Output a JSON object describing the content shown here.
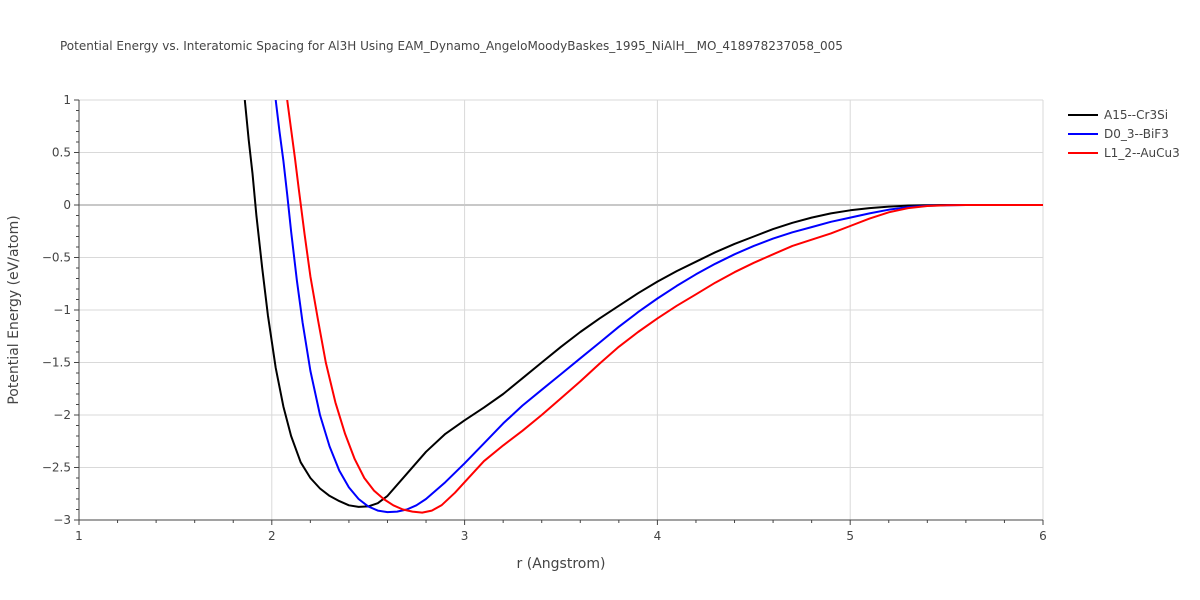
{
  "chart_data": {
    "type": "line",
    "title": "Potential Energy vs. Interatomic Spacing for Al3H Using EAM_Dynamo_AngeloMoodyBaskes_1995_NiAlH__MO_418978237058_005",
    "xlabel": "r (Angstrom)",
    "ylabel": "Potential Energy (eV/atom)",
    "xlim": [
      1,
      6
    ],
    "ylim": [
      -3,
      1
    ],
    "xticks": [
      1,
      2,
      3,
      4,
      5,
      6
    ],
    "xtick_labels": [
      "1",
      "2",
      "3",
      "4",
      "5",
      "6"
    ],
    "yticks": [
      1,
      0.5,
      0,
      -0.5,
      -1,
      -1.5,
      -2,
      -2.5,
      -3
    ],
    "ytick_labels": [
      "1",
      "0.5",
      "0",
      "−0.5",
      "−1",
      "−1.5",
      "−2",
      "−2.5",
      "−3"
    ],
    "grid": true,
    "legend_position": "top-right",
    "series": [
      {
        "name": "A15--Cr3Si",
        "color": "#000000",
        "x": [
          1.86,
          1.88,
          1.9,
          1.92,
          1.95,
          1.98,
          2.02,
          2.06,
          2.1,
          2.15,
          2.2,
          2.25,
          2.3,
          2.35,
          2.4,
          2.45,
          2.5,
          2.55,
          2.6,
          2.7,
          2.8,
          2.9,
          3.0,
          3.1,
          3.2,
          3.3,
          3.4,
          3.5,
          3.6,
          3.7,
          3.8,
          3.9,
          4.0,
          4.1,
          4.2,
          4.3,
          4.4,
          4.5,
          4.6,
          4.7,
          4.8,
          4.9,
          5.0,
          5.1,
          5.2,
          5.3,
          5.4,
          5.5,
          5.6,
          5.8,
          6.0
        ],
        "y": [
          1.0,
          0.62,
          0.3,
          -0.1,
          -0.6,
          -1.05,
          -1.55,
          -1.92,
          -2.2,
          -2.45,
          -2.6,
          -2.7,
          -2.77,
          -2.82,
          -2.86,
          -2.875,
          -2.87,
          -2.84,
          -2.77,
          -2.56,
          -2.35,
          -2.18,
          -2.05,
          -1.93,
          -1.8,
          -1.65,
          -1.5,
          -1.35,
          -1.21,
          -1.08,
          -0.96,
          -0.84,
          -0.73,
          -0.63,
          -0.54,
          -0.45,
          -0.37,
          -0.3,
          -0.23,
          -0.17,
          -0.12,
          -0.08,
          -0.05,
          -0.03,
          -0.015,
          -0.006,
          -0.002,
          0.0,
          0.0,
          0.0,
          0.0
        ]
      },
      {
        "name": "D0_3--BiF3",
        "color": "#0000ff",
        "x": [
          2.02,
          2.04,
          2.06,
          2.08,
          2.1,
          2.13,
          2.16,
          2.2,
          2.25,
          2.3,
          2.35,
          2.4,
          2.45,
          2.5,
          2.55,
          2.6,
          2.65,
          2.7,
          2.75,
          2.8,
          2.9,
          3.0,
          3.1,
          3.2,
          3.3,
          3.4,
          3.5,
          3.6,
          3.7,
          3.8,
          3.9,
          4.0,
          4.1,
          4.2,
          4.3,
          4.4,
          4.5,
          4.6,
          4.7,
          4.8,
          4.9,
          5.0,
          5.1,
          5.2,
          5.3,
          5.4,
          5.5,
          5.6,
          5.8,
          6.0
        ],
        "y": [
          1.0,
          0.7,
          0.42,
          0.1,
          -0.25,
          -0.72,
          -1.12,
          -1.58,
          -2.0,
          -2.3,
          -2.53,
          -2.69,
          -2.8,
          -2.87,
          -2.91,
          -2.925,
          -2.92,
          -2.9,
          -2.86,
          -2.8,
          -2.64,
          -2.46,
          -2.27,
          -2.08,
          -1.91,
          -1.76,
          -1.61,
          -1.46,
          -1.31,
          -1.16,
          -1.02,
          -0.89,
          -0.77,
          -0.66,
          -0.56,
          -0.47,
          -0.39,
          -0.32,
          -0.26,
          -0.21,
          -0.16,
          -0.12,
          -0.08,
          -0.045,
          -0.02,
          -0.007,
          -0.002,
          0.0,
          0.0,
          0.0
        ]
      },
      {
        "name": "L1_2--AuCu3",
        "color": "#ff0000",
        "x": [
          2.08,
          2.1,
          2.12,
          2.14,
          2.17,
          2.2,
          2.24,
          2.28,
          2.33,
          2.38,
          2.43,
          2.48,
          2.53,
          2.58,
          2.63,
          2.68,
          2.73,
          2.78,
          2.83,
          2.88,
          2.95,
          3.0,
          3.1,
          3.2,
          3.3,
          3.4,
          3.5,
          3.6,
          3.7,
          3.8,
          3.9,
          4.0,
          4.1,
          4.2,
          4.3,
          4.4,
          4.5,
          4.6,
          4.7,
          4.8,
          4.9,
          5.0,
          5.1,
          5.2,
          5.3,
          5.4,
          5.5,
          5.6,
          5.8,
          6.0
        ],
        "y": [
          1.0,
          0.72,
          0.45,
          0.15,
          -0.28,
          -0.68,
          -1.1,
          -1.5,
          -1.88,
          -2.18,
          -2.42,
          -2.6,
          -2.72,
          -2.8,
          -2.86,
          -2.9,
          -2.92,
          -2.93,
          -2.91,
          -2.86,
          -2.74,
          -2.64,
          -2.44,
          -2.29,
          -2.15,
          -2.0,
          -1.84,
          -1.68,
          -1.51,
          -1.35,
          -1.21,
          -1.08,
          -0.96,
          -0.85,
          -0.74,
          -0.64,
          -0.55,
          -0.47,
          -0.39,
          -0.33,
          -0.27,
          -0.2,
          -0.13,
          -0.07,
          -0.03,
          -0.01,
          -0.002,
          0.0,
          0.0,
          0.0
        ]
      }
    ]
  }
}
